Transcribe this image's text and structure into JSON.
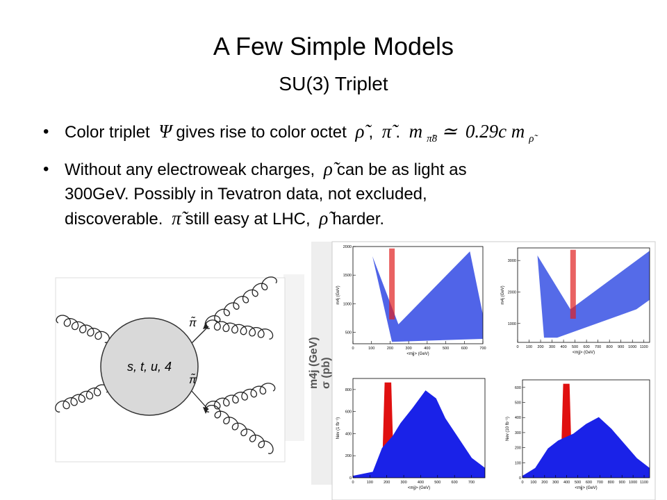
{
  "title": "A Few Simple Models",
  "subtitle": "SU(3) Triplet",
  "bullets": [
    {
      "lines": [
        [
          {
            "text": "Color triplet"
          },
          {
            "math": "Ψ"
          },
          {
            "text": "gives rise to color octet"
          },
          {
            "math": "ρ̃"
          },
          {
            "text": ","
          },
          {
            "math": "π̃"
          },
          {
            "text": "."
          },
          {
            "math": "m"
          },
          {
            "sub": "π̃8"
          },
          {
            "math": "≃"
          },
          {
            "math": "0.29c m"
          },
          {
            "sub": "ρ̃"
          }
        ]
      ]
    },
    {
      "lines": [
        [
          {
            "text": "Without any electroweak charges,"
          },
          {
            "math": "ρ̃"
          },
          {
            "text": "can be as light as"
          }
        ],
        [
          {
            "text": "300GeV. Possibly in Tevatron data, not excluded,"
          }
        ],
        [
          {
            "text": "discoverable."
          },
          {
            "math": "π̃"
          },
          {
            "text": "still easy at LHC,"
          },
          {
            "math": "ρ̃"
          },
          {
            "text": "harder."
          }
        ]
      ]
    }
  ],
  "diagram": {
    "vertex": "s, t, u, 4",
    "upper_particle": "π̃",
    "lower_particle": "π̃"
  },
  "background_labels": [
    "m4j (GeV)",
    "σ (pb)"
  ],
  "plots": [
    {
      "xlabel": "<mjj> (GeV)",
      "ylabel": "m4j (GeV)",
      "xlim": [
        0,
        700
      ],
      "ylim": [
        300,
        2000
      ],
      "xticks": [
        0,
        100,
        200,
        300,
        400,
        500,
        600,
        700
      ],
      "yticks": [
        500,
        1000,
        1500,
        2000
      ]
    },
    {
      "xlabel": "<mjj> (GeV)",
      "ylabel": "m4j (GeV)",
      "xlim": [
        0,
        1150
      ],
      "ylim": [
        400,
        3400
      ],
      "xticks": [
        0,
        100,
        200,
        300,
        400,
        500,
        600,
        700,
        800,
        900,
        1000,
        1100
      ],
      "yticks": [
        1000,
        2000,
        3000
      ]
    },
    {
      "xlabel": "<mjj> (GeV)",
      "ylabel": "Nev (1 fb⁻¹)",
      "xlim": [
        0,
        780
      ],
      "ylim": [
        0,
        900
      ],
      "xticks": [
        0,
        100,
        200,
        300,
        400,
        500,
        600,
        700
      ],
      "yticks": [
        0,
        200,
        400,
        600,
        800
      ]
    },
    {
      "xlabel": "<mjj> (GeV)",
      "ylabel": "Nev (10 fb⁻¹)",
      "xlim": [
        0,
        1150
      ],
      "ylim": [
        0,
        650
      ],
      "xticks": [
        0,
        100,
        200,
        300,
        400,
        500,
        600,
        700,
        800,
        900,
        1000,
        1100
      ],
      "yticks": [
        0,
        100,
        200,
        300,
        400,
        500,
        600
      ]
    }
  ]
}
